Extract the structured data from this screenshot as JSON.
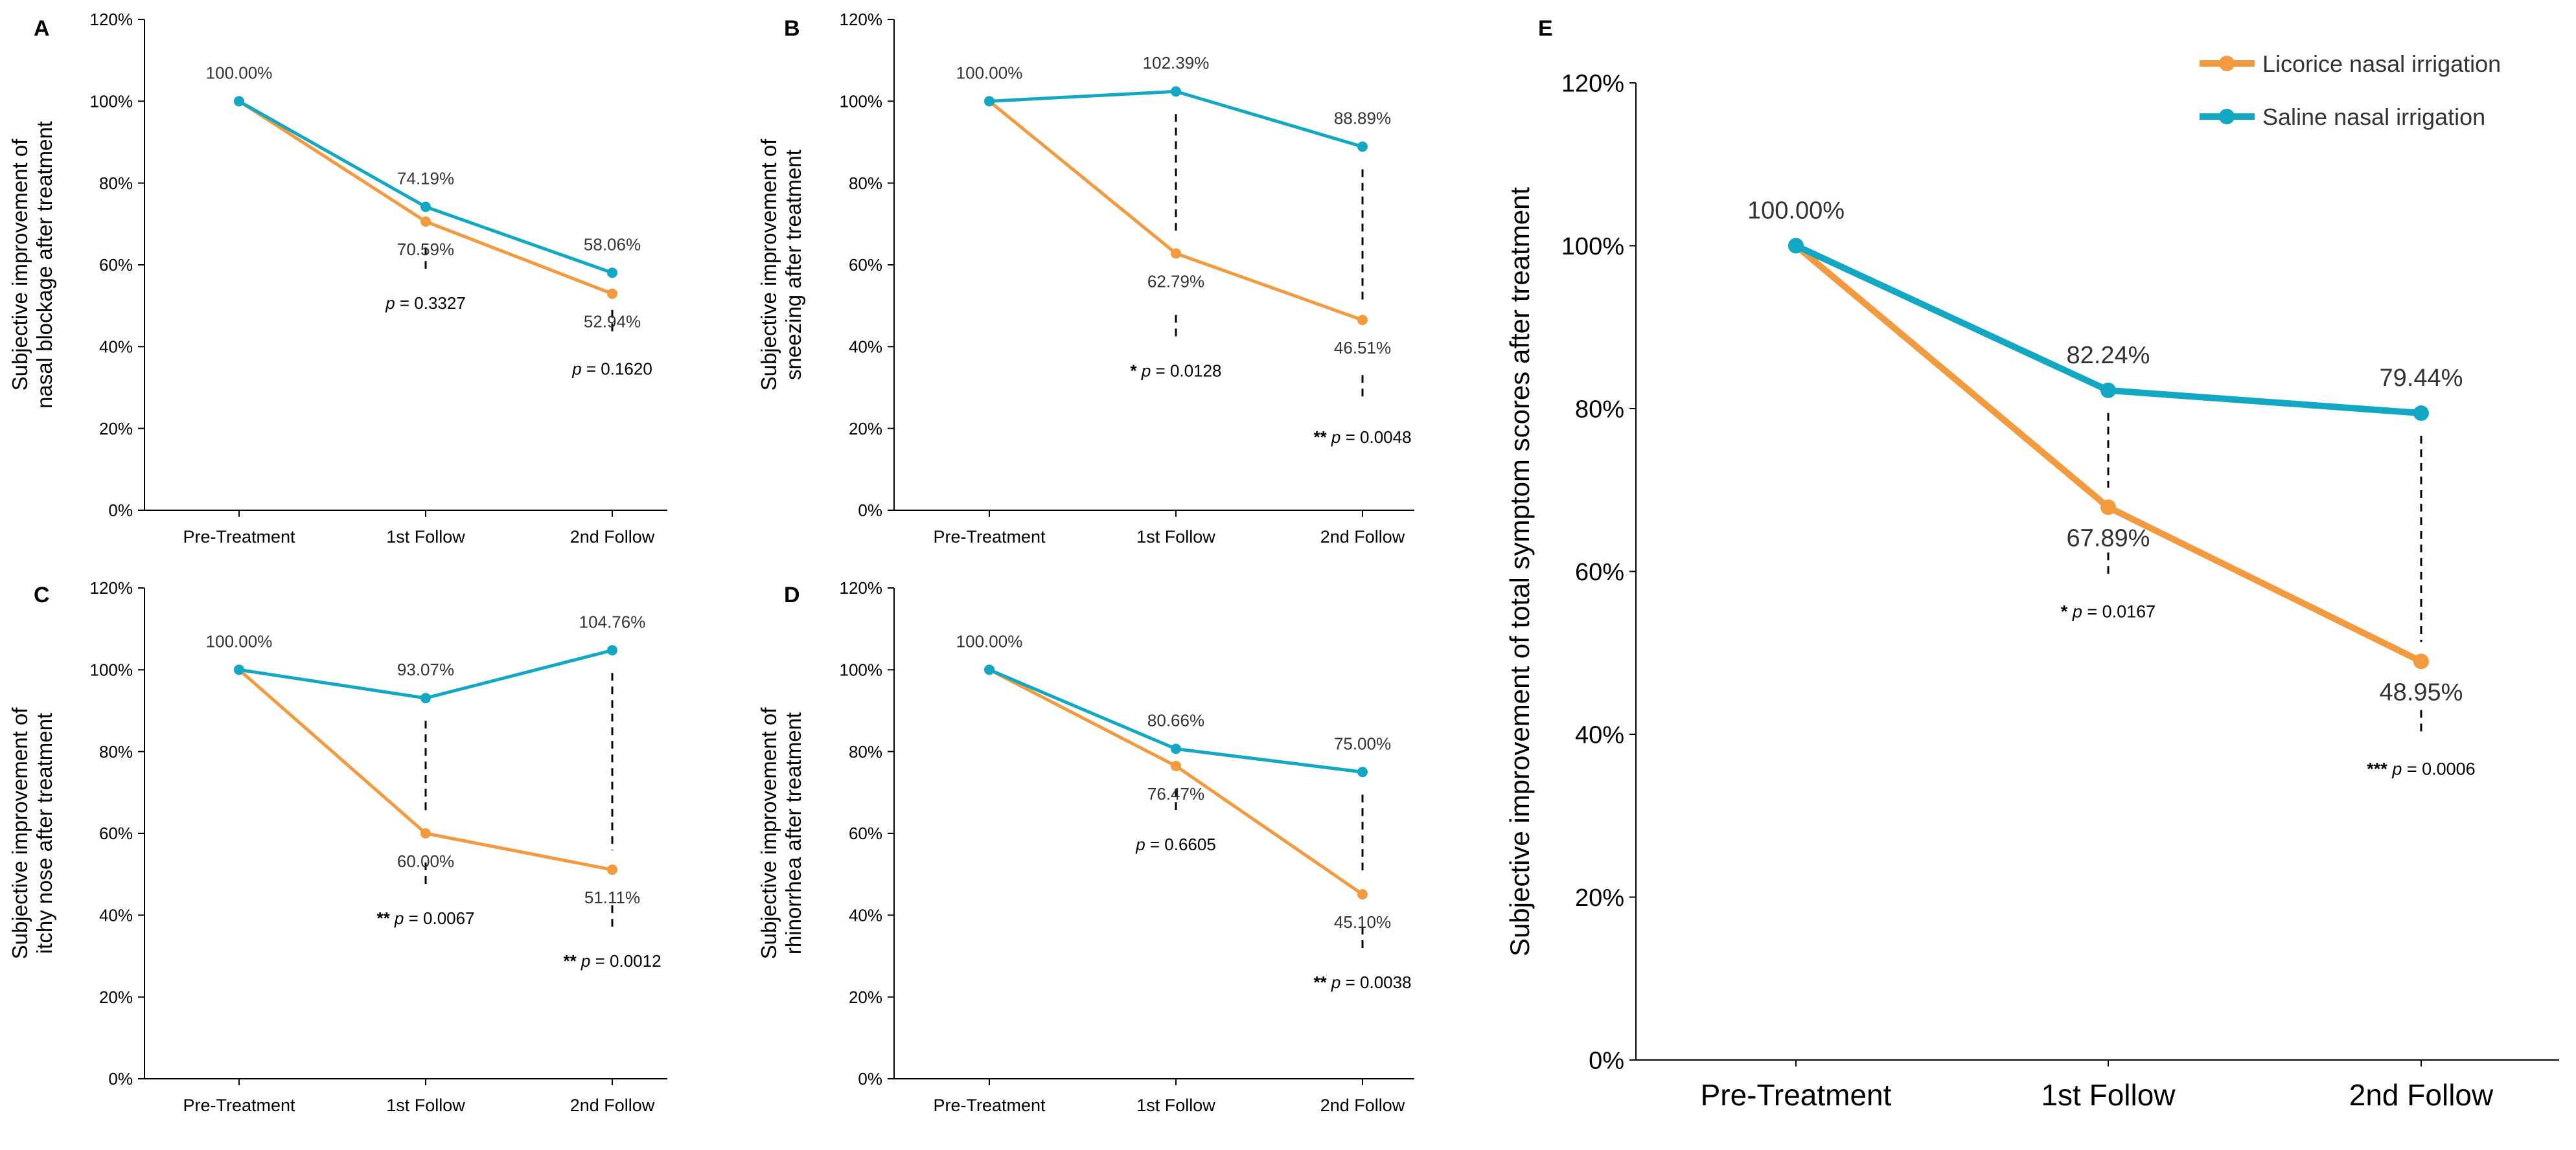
{
  "colors": {
    "licorice": "#F39A3E",
    "saline": "#12A8C4",
    "axis": "#000000"
  },
  "legend": {
    "licorice": "Licorice nasal irrigation",
    "saline": "Saline nasal irrigation"
  },
  "chart_data": [
    {
      "panel": "A",
      "type": "line",
      "categories": [
        "Pre-Treatment",
        "1st Follow",
        "2nd Follow"
      ],
      "ylabel_lines": [
        "Subjective improvement of",
        "nasal blockage after treatment"
      ],
      "ylim": [
        0,
        120
      ],
      "yticks": [
        "0%",
        "20%",
        "40%",
        "60%",
        "80%",
        "100%",
        "120%"
      ],
      "series": [
        {
          "name": "Licorice nasal irrigation",
          "key": "licorice",
          "values": [
            100.0,
            70.59,
            52.94
          ],
          "labels": [
            "100.00%",
            "70.59%",
            "52.94%"
          ]
        },
        {
          "name": "Saline nasal irrigation",
          "key": "saline",
          "values": [
            100.0,
            74.19,
            58.06
          ],
          "labels": [
            "100.00%",
            "74.19%",
            "58.06%"
          ]
        }
      ],
      "pvalues": [
        {
          "category": 1,
          "stars": "",
          "text": "p = 0.3327"
        },
        {
          "category": 2,
          "stars": "",
          "text": "p = 0.1620"
        }
      ]
    },
    {
      "panel": "B",
      "type": "line",
      "categories": [
        "Pre-Treatment",
        "1st Follow",
        "2nd Follow"
      ],
      "ylabel_lines": [
        "Subjective improvement of",
        "sneezing after treatment"
      ],
      "ylim": [
        0,
        120
      ],
      "yticks": [
        "0%",
        "20%",
        "40%",
        "60%",
        "80%",
        "100%",
        "120%"
      ],
      "series": [
        {
          "name": "Licorice nasal irrigation",
          "key": "licorice",
          "values": [
            100.0,
            62.79,
            46.51
          ],
          "labels": [
            "100.00%",
            "62.79%",
            "46.51%"
          ]
        },
        {
          "name": "Saline nasal irrigation",
          "key": "saline",
          "values": [
            100.0,
            102.39,
            88.89
          ],
          "labels": [
            "100.00%",
            "102.39%",
            "88.89%"
          ]
        }
      ],
      "pvalues": [
        {
          "category": 1,
          "stars": "* ",
          "text": "p = 0.0128"
        },
        {
          "category": 2,
          "stars": "** ",
          "text": "p = 0.0048"
        }
      ]
    },
    {
      "panel": "C",
      "type": "line",
      "categories": [
        "Pre-Treatment",
        "1st Follow",
        "2nd Follow"
      ],
      "ylabel_lines": [
        "Subjective improvement of",
        "itchy nose after treatment"
      ],
      "ylim": [
        0,
        120
      ],
      "yticks": [
        "0%",
        "20%",
        "40%",
        "60%",
        "80%",
        "100%",
        "120%"
      ],
      "series": [
        {
          "name": "Licorice nasal irrigation",
          "key": "licorice",
          "values": [
            100.0,
            60.0,
            51.11
          ],
          "labels": [
            "100.00%",
            "60.00%",
            "51.11%"
          ]
        },
        {
          "name": "Saline nasal irrigation",
          "key": "saline",
          "values": [
            100.0,
            93.07,
            104.76
          ],
          "labels": [
            "100.00%",
            "93.07%",
            "104.76%"
          ]
        }
      ],
      "pvalues": [
        {
          "category": 1,
          "stars": "** ",
          "text": "p = 0.0067"
        },
        {
          "category": 2,
          "stars": "** ",
          "text": "p = 0.0012"
        }
      ]
    },
    {
      "panel": "D",
      "type": "line",
      "categories": [
        "Pre-Treatment",
        "1st Follow",
        "2nd Follow"
      ],
      "ylabel_lines": [
        "Subjective improvement of",
        "rhinorrhea after treatment"
      ],
      "ylim": [
        0,
        120
      ],
      "yticks": [
        "0%",
        "20%",
        "40%",
        "60%",
        "80%",
        "100%",
        "120%"
      ],
      "series": [
        {
          "name": "Licorice nasal irrigation",
          "key": "licorice",
          "values": [
            100.0,
            76.47,
            45.1
          ],
          "labels": [
            "100.00%",
            "76.47%",
            "45.10%"
          ]
        },
        {
          "name": "Saline nasal irrigation",
          "key": "saline",
          "values": [
            100.0,
            80.66,
            75.0
          ],
          "labels": [
            "100.00%",
            "80.66%",
            "75.00%"
          ]
        }
      ],
      "pvalues": [
        {
          "category": 1,
          "stars": "",
          "text": "p = 0.6605"
        },
        {
          "category": 2,
          "stars": "** ",
          "text": "p = 0.0038"
        }
      ]
    },
    {
      "panel": "E",
      "type": "line",
      "categories": [
        "Pre-Treatment",
        "1st Follow",
        "2nd Follow"
      ],
      "ylabel_lines": [
        "Subjective improvement of total symptom scores after treatment"
      ],
      "ylim": [
        0,
        120
      ],
      "yticks": [
        "0%",
        "20%",
        "40%",
        "60%",
        "80%",
        "100%",
        "120%"
      ],
      "series": [
        {
          "name": "Licorice nasal irrigation",
          "key": "licorice",
          "values": [
            100.0,
            67.89,
            48.95
          ],
          "labels": [
            "100.00%",
            "67.89%",
            "48.95%"
          ]
        },
        {
          "name": "Saline nasal irrigation",
          "key": "saline",
          "values": [
            100.0,
            82.24,
            79.44
          ],
          "labels": [
            "100.00%",
            "82.24%",
            "79.44%"
          ]
        }
      ],
      "pvalues": [
        {
          "category": 1,
          "stars": "* ",
          "text": "p = 0.0167"
        },
        {
          "category": 2,
          "stars": "*** ",
          "text": "p = 0.0006"
        }
      ],
      "legend_position": "top-right"
    }
  ]
}
